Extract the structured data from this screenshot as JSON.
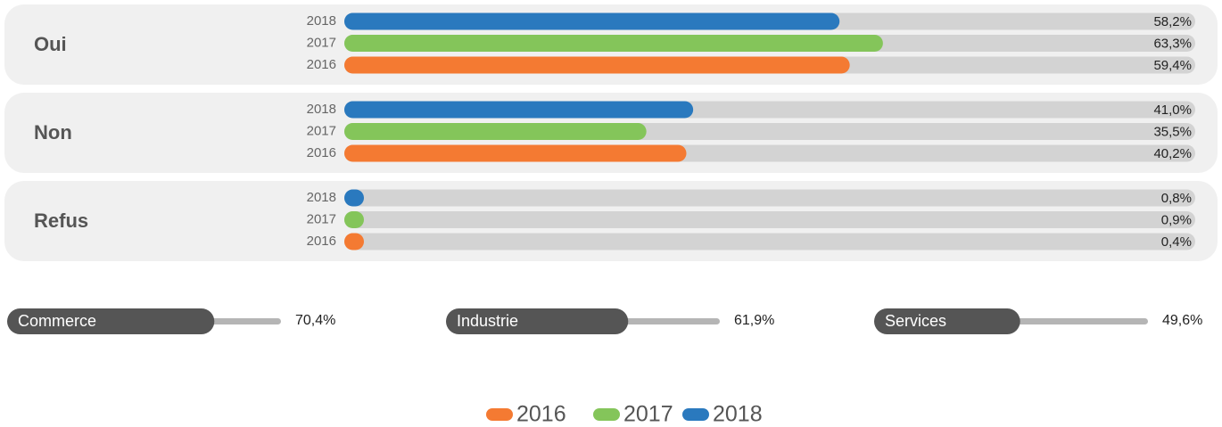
{
  "chart_data": [
    {
      "type": "bar",
      "orientation": "horizontal",
      "categories": [
        "Oui",
        "Non",
        "Refus"
      ],
      "xlim": [
        0,
        100
      ],
      "series": [
        {
          "name": "2018",
          "color": "#2a79be",
          "values": [
            58.2,
            41.0,
            0.8
          ],
          "value_labels": [
            "58,2%",
            "41,0%",
            "0,8%"
          ]
        },
        {
          "name": "2017",
          "color": "#84c55a",
          "values": [
            63.3,
            35.5,
            0.9
          ],
          "value_labels": [
            "63,3%",
            "35,5%",
            "0,9%"
          ]
        },
        {
          "name": "2016",
          "color": "#f47a32",
          "values": [
            59.4,
            40.2,
            0.4
          ],
          "value_labels": [
            "59,4%",
            "40,2%",
            "0,4%"
          ]
        }
      ],
      "legend_order": [
        "2016",
        "2017",
        "2018"
      ]
    },
    {
      "type": "bar",
      "orientation": "horizontal",
      "categories": [
        "Commerce",
        "Industrie",
        "Services"
      ],
      "xlim": [
        0,
        100
      ],
      "color": "#555555",
      "values": [
        70.4,
        61.9,
        49.6
      ],
      "value_labels": [
        "70,4%",
        "61,9%",
        "49,6%"
      ]
    }
  ]
}
